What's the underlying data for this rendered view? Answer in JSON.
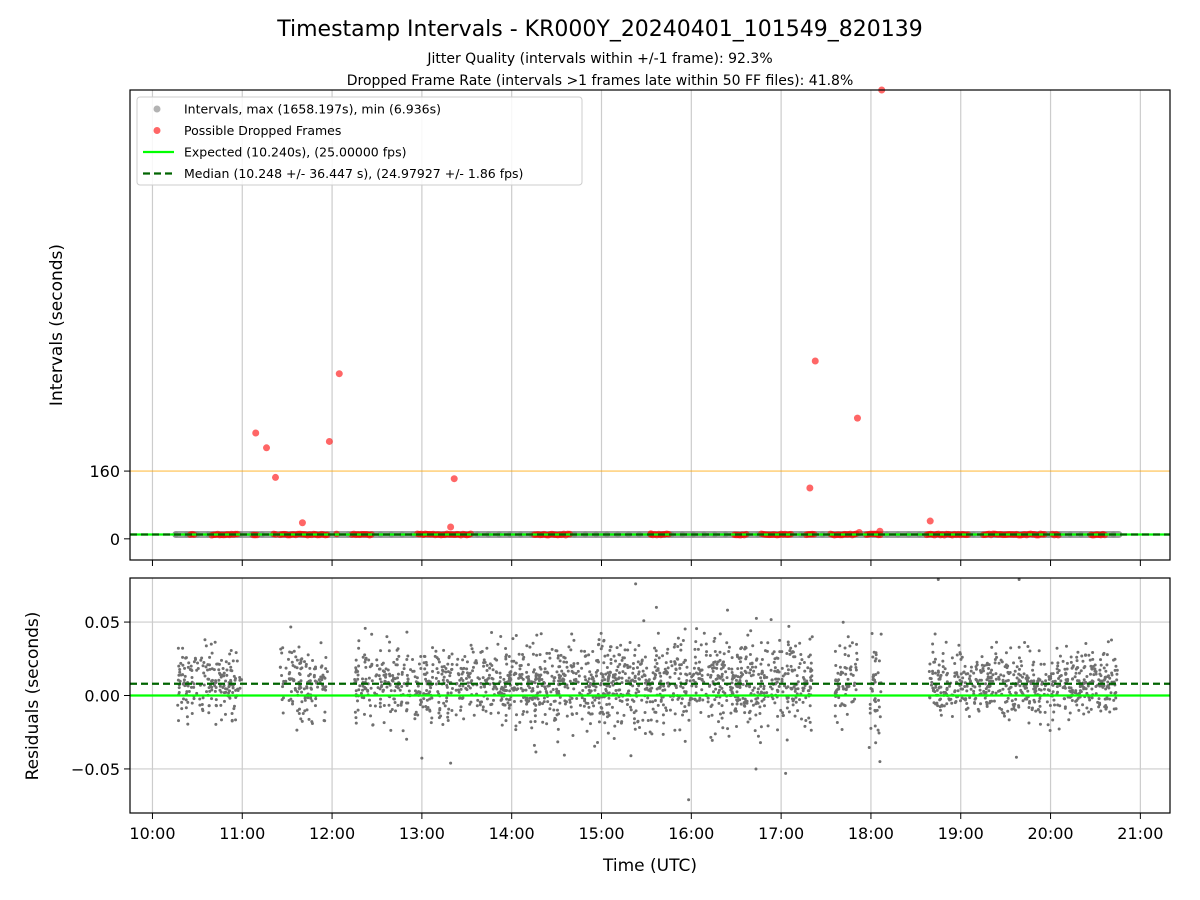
{
  "colors": {
    "intervals": "#808080",
    "dropped": "#ff0000",
    "expected": "#00ff00",
    "median": "#006400",
    "threshold": "#ffa500",
    "residuals": "#707070",
    "grid": "#cccccc"
  },
  "chart_data": [
    {
      "type": "scatter",
      "title": "Timestamp Intervals - KR000Y_20240401_101549_820139",
      "subtitle_lines": [
        "Jitter Quality (intervals within +/-1 frame): 92.3%",
        "Dropped Frame Rate (intervals >1 frames late within 50 FF files): 41.8%"
      ],
      "ylabel": "Intervals (seconds)",
      "xlim": [
        9.75,
        21.33
      ],
      "ylim": [
        -50,
        1060
      ],
      "yticks": [
        0,
        160
      ],
      "ytick_labels": [
        "0",
        "160"
      ],
      "grid": "vertical",
      "threshold_line_y": 160,
      "legend_placement": "top-left",
      "legend": [
        {
          "label": "Intervals, max (1658.197s), min (6.936s)",
          "marker": "point",
          "color": "#808080"
        },
        {
          "label": "Possible Dropped Frames",
          "marker": "point",
          "color": "#ff0000"
        },
        {
          "label": "Expected (10.240s), (25.00000 fps)",
          "marker": "line",
          "color": "#00ff00"
        },
        {
          "label": "Median (10.248 +/- 36.447 s), (24.97927 +/- 1.86 fps)",
          "marker": "dashed",
          "color": "#006400"
        }
      ],
      "series": [
        {
          "name": "Intervals, max (1658.197s), min (6.936s)",
          "x_range": [
            10.26,
            20.76
          ],
          "y_typical": 10.24
        },
        {
          "name": "Possible Dropped Frames",
          "clusters": [
            [
              10.42,
              10.48
            ],
            [
              10.66,
              10.95
            ],
            [
              11.12,
              11.17
            ],
            [
              11.35,
              11.38
            ],
            [
              11.42,
              11.95
            ],
            [
              12.05,
              12.07
            ],
            [
              12.22,
              12.45
            ],
            [
              12.95,
              13.55
            ],
            [
              14.25,
              14.65
            ],
            [
              15.55,
              15.75
            ],
            [
              16.48,
              16.62
            ],
            [
              16.78,
              17.12
            ],
            [
              17.28,
              17.38
            ],
            [
              17.55,
              17.85
            ],
            [
              17.95,
              18.12
            ],
            [
              18.62,
              19.1
            ],
            [
              19.25,
              19.95
            ],
            [
              20.02,
              20.1
            ],
            [
              20.45,
              20.62
            ]
          ],
          "outliers": [
            {
              "x": 11.15,
              "y": 250
            },
            {
              "x": 11.27,
              "y": 215
            },
            {
              "x": 11.37,
              "y": 145
            },
            {
              "x": 11.67,
              "y": 38
            },
            {
              "x": 11.97,
              "y": 230
            },
            {
              "x": 12.08,
              "y": 390
            },
            {
              "x": 13.32,
              "y": 28
            },
            {
              "x": 13.36,
              "y": 142
            },
            {
              "x": 15.55,
              "y": 12
            },
            {
              "x": 17.32,
              "y": 120
            },
            {
              "x": 17.38,
              "y": 420
            },
            {
              "x": 17.85,
              "y": 285
            },
            {
              "x": 17.87,
              "y": 15
            },
            {
              "x": 18.1,
              "y": 18
            },
            {
              "x": 18.12,
              "y": 1060
            },
            {
              "x": 18.66,
              "y": 42
            }
          ]
        },
        {
          "name": "Expected (10.240s), (25.00000 fps)",
          "y": 10.24
        },
        {
          "name": "Median (10.248 +/- 36.447 s), (24.97927 +/- 1.86 fps)",
          "y": 10.248
        }
      ]
    },
    {
      "type": "scatter",
      "xlabel": "Time (UTC)",
      "ylabel": "Residuals (seconds)",
      "xlim": [
        9.75,
        21.33
      ],
      "ylim": [
        -0.08,
        0.08
      ],
      "yticks": [
        -0.05,
        0.0,
        0.05
      ],
      "ytick_labels": [
        "−0.05",
        "0.00",
        "0.05"
      ],
      "xticks": [
        10,
        11,
        12,
        13,
        14,
        15,
        16,
        17,
        18,
        19,
        20,
        21
      ],
      "xtick_labels": [
        "10:00",
        "11:00",
        "12:00",
        "13:00",
        "14:00",
        "15:00",
        "16:00",
        "17:00",
        "18:00",
        "19:00",
        "20:00",
        "21:00"
      ],
      "grid": "both",
      "expected_line_y": 0.0,
      "median_line_y": 0.008,
      "segments": [
        {
          "start": 10.28,
          "end": 11.0,
          "spread": 0.02,
          "count": 190
        },
        {
          "start": 11.42,
          "end": 11.95,
          "spread": 0.02,
          "count": 140
        },
        {
          "start": 12.25,
          "end": 13.35,
          "spread": 0.021,
          "count": 300
        },
        {
          "start": 13.38,
          "end": 14.0,
          "spread": 0.021,
          "count": 180
        },
        {
          "start": 14.0,
          "end": 15.0,
          "spread": 0.024,
          "count": 330
        },
        {
          "start": 15.0,
          "end": 16.0,
          "spread": 0.026,
          "count": 340
        },
        {
          "start": 16.0,
          "end": 17.0,
          "spread": 0.025,
          "count": 330
        },
        {
          "start": 17.0,
          "end": 17.35,
          "spread": 0.024,
          "count": 110
        },
        {
          "start": 17.6,
          "end": 17.85,
          "spread": 0.025,
          "count": 70
        },
        {
          "start": 17.98,
          "end": 18.12,
          "spread": 0.028,
          "count": 45
        },
        {
          "start": 18.65,
          "end": 20.75,
          "spread": 0.019,
          "count": 620
        }
      ],
      "outliers": [
        {
          "x": 15.97,
          "y": -0.071
        },
        {
          "x": 15.38,
          "y": 0.076
        },
        {
          "x": 18.75,
          "y": 0.079
        },
        {
          "x": 19.65,
          "y": 0.079
        },
        {
          "x": 17.05,
          "y": -0.053
        },
        {
          "x": 16.72,
          "y": -0.05
        },
        {
          "x": 13.32,
          "y": -0.046
        },
        {
          "x": 18.1,
          "y": -0.045
        },
        {
          "x": 19.62,
          "y": -0.042
        }
      ]
    }
  ]
}
